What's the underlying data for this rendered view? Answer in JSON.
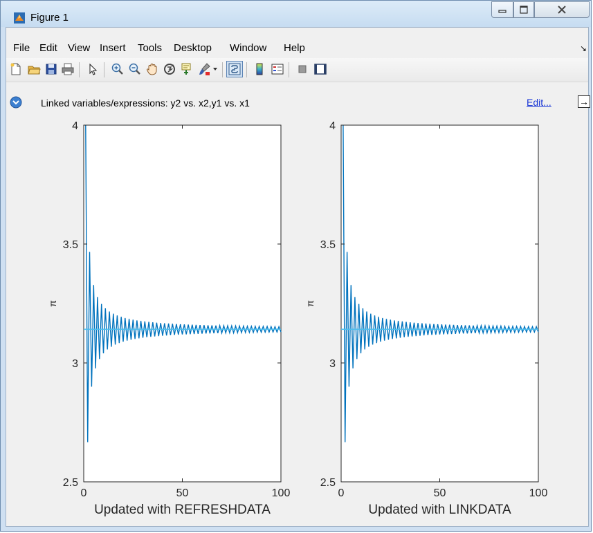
{
  "window": {
    "title": "Figure 1",
    "controls": [
      "minimize",
      "maximize",
      "close"
    ]
  },
  "menu": {
    "items": [
      "File",
      "Edit",
      "View",
      "Insert",
      "Tools",
      "Desktop",
      "Window",
      "Help"
    ]
  },
  "toolbar": {
    "icons": [
      "new-figure-icon",
      "open-file-icon",
      "save-icon",
      "print-icon",
      "pointer-icon",
      "zoom-in-icon",
      "zoom-out-icon",
      "pan-icon",
      "rotate-3d-icon",
      "data-cursor-icon",
      "brush-icon",
      "link-plot-icon",
      "colorbar-icon",
      "legend-icon",
      "hide-plot-tools-icon",
      "show-plot-tools-icon"
    ]
  },
  "linkbar": {
    "text": "Linked variables/expressions: y2 vs. x2,y1 vs. x1",
    "edit_label": "Edit..."
  },
  "chart_data": [
    {
      "type": "line",
      "xlabel": "Updated with REFRESHDATA",
      "ylabel": "π",
      "xlim": [
        0,
        100
      ],
      "ylim": [
        2.5,
        4
      ],
      "xticks": [
        "0",
        "50",
        "100"
      ],
      "yticks": [
        "2.5",
        "3",
        "3.5",
        "4"
      ],
      "series": [
        {
          "x": [
            1,
            2,
            3,
            4,
            5,
            6,
            7,
            8,
            9,
            10,
            12,
            15,
            20,
            30,
            50,
            100
          ],
          "values": [
            4.0,
            2.667,
            3.467,
            2.895,
            3.34,
            2.976,
            3.284,
            3.017,
            3.252,
            3.042,
            3.058,
            3.208,
            3.092,
            3.108,
            3.122,
            3.132
          ],
          "color": "#0072bd"
        },
        {
          "x": [
            0,
            100
          ],
          "values": [
            3.1416,
            3.1416
          ],
          "color": "#4dbeee"
        }
      ]
    },
    {
      "type": "line",
      "xlabel": "Updated with LINKDATA",
      "ylabel": "π",
      "xlim": [
        0,
        100
      ],
      "ylim": [
        2.5,
        4
      ],
      "xticks": [
        "0",
        "50",
        "100"
      ],
      "yticks": [
        "2.5",
        "3",
        "3.5",
        "4"
      ],
      "series": [
        {
          "x": [
            1,
            2,
            3,
            4,
            5,
            6,
            7,
            8,
            9,
            10,
            12,
            15,
            20,
            30,
            50,
            100
          ],
          "values": [
            4.0,
            2.667,
            3.467,
            2.895,
            3.34,
            2.976,
            3.284,
            3.017,
            3.252,
            3.042,
            3.058,
            3.208,
            3.092,
            3.108,
            3.122,
            3.132
          ],
          "color": "#0072bd"
        },
        {
          "x": [
            0,
            100
          ],
          "values": [
            3.1416,
            3.1416
          ],
          "color": "#4dbeee"
        }
      ]
    }
  ]
}
